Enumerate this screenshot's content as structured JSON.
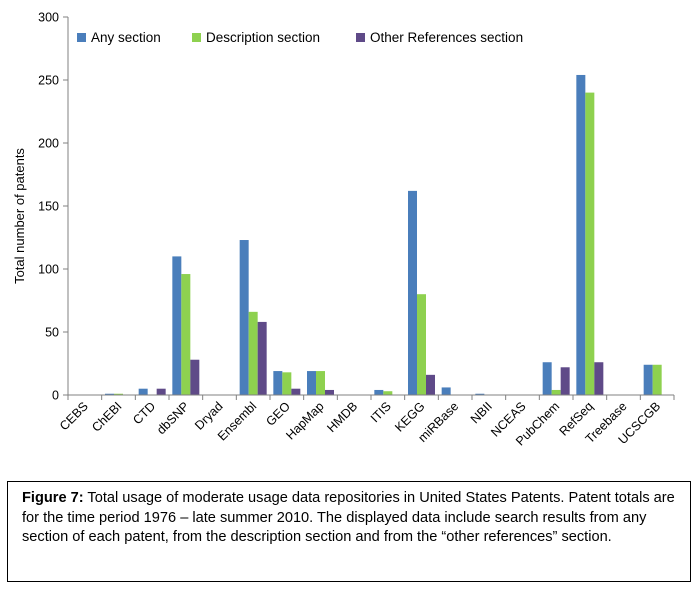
{
  "chart_data": {
    "type": "bar",
    "title": "",
    "xlabel": "",
    "ylabel": "Total number of patents",
    "ylim": [
      0,
      300
    ],
    "yticks": [
      0,
      50,
      100,
      150,
      200,
      250,
      300
    ],
    "grid": false,
    "legend_position": "top",
    "categories": [
      "CEBS",
      "ChEBI",
      "CTD",
      "dbSNP",
      "Dryad",
      "Ensembl",
      "GEO",
      "HapMap",
      "HMDB",
      "ITIS",
      "KEGG",
      "miRBase",
      "NBII",
      "NCEAS",
      "PubChem",
      "RefSeq",
      "Treebase",
      "UCSCGB"
    ],
    "series": [
      {
        "name": "Any section",
        "color": "#4a7ebb",
        "values": [
          0,
          1,
          5,
          110,
          0,
          123,
          19,
          19,
          0,
          4,
          162,
          6,
          1,
          0,
          26,
          254,
          0,
          24
        ]
      },
      {
        "name": "Description section",
        "color": "#8ed14f",
        "values": [
          0,
          1,
          0,
          96,
          0,
          66,
          18,
          19,
          0,
          3,
          80,
          0,
          0,
          0,
          4,
          240,
          0,
          24
        ]
      },
      {
        "name": "Other References section",
        "color": "#5f4a88",
        "values": [
          0,
          0,
          5,
          28,
          0,
          58,
          5,
          4,
          0,
          0,
          16,
          0,
          0,
          0,
          22,
          26,
          0,
          0
        ]
      }
    ]
  },
  "caption": {
    "label": "Figure 7:",
    "text": "  Total usage of moderate usage data repositories in United States Patents. Patent totals are for the time period 1976 – late summer 2010.  The displayed data include search results from any section of each patent, from the description section and from the “other references” section."
  }
}
